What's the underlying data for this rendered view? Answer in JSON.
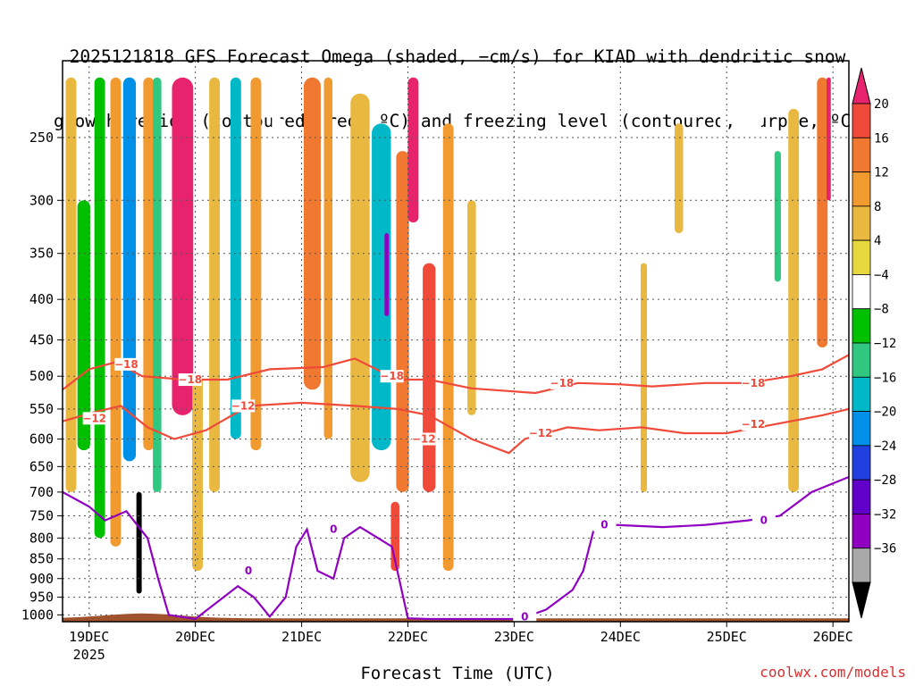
{
  "chart_data": {
    "type": "heatmap",
    "title_lines": [
      "2025121818 GFS Forecast Omega (shaded, −cm/s) for KIAD with dendritic snow",
      "growth region (contoured, red, ºC) and freezing level (contoured, purple, ºC)"
    ],
    "xlabel": "Forecast Time (UTC)",
    "credit": "coolwx.com/models",
    "x_ticks": [
      {
        "label": "19DEC",
        "sub": "2025",
        "day": 0
      },
      {
        "label": "20DEC",
        "day": 1
      },
      {
        "label": "21DEC",
        "day": 2
      },
      {
        "label": "22DEC",
        "day": 3
      },
      {
        "label": "23DEC",
        "day": 4
      },
      {
        "label": "24DEC",
        "day": 5
      },
      {
        "label": "25DEC",
        "day": 6
      },
      {
        "label": "26DEC",
        "day": 7
      }
    ],
    "xlim_days": [
      -0.25,
      7.15
    ],
    "y_levels": [
      250,
      300,
      350,
      400,
      450,
      500,
      550,
      600,
      650,
      700,
      750,
      800,
      850,
      900,
      950,
      1000
    ],
    "ylim_hpa": [
      200,
      1020
    ],
    "y_scale": "log",
    "grid": true,
    "colorbar": {
      "labels": [
        "20",
        "16",
        "12",
        "8",
        "4",
        "−4",
        "−8",
        "−12",
        "−16",
        "−20",
        "−24",
        "−28",
        "−32",
        "−36"
      ],
      "colors": [
        "#e8236e",
        "#f04a3a",
        "#f07830",
        "#f09a30",
        "#e8b840",
        "#e8d840",
        "#ffffff",
        "#00c000",
        "#30c880",
        "#00b8c8",
        "#0090e8",
        "#2040e0",
        "#6000c8",
        "#9000c0",
        "#a8a8a8",
        "#000000"
      ]
    },
    "omega_cells": [
      {
        "day": -0.17,
        "p0": 210,
        "p1": 700,
        "w": 0.1,
        "v": 6
      },
      {
        "day": -0.05,
        "p0": 300,
        "p1": 620,
        "w": 0.12,
        "v": -10
      },
      {
        "day": 0.1,
        "p0": 210,
        "p1": 800,
        "w": 0.1,
        "v": -12
      },
      {
        "day": 0.25,
        "p0": 210,
        "p1": 820,
        "w": 0.1,
        "v": 10
      },
      {
        "day": 0.38,
        "p0": 210,
        "p1": 640,
        "w": 0.12,
        "v": -24
      },
      {
        "day": 0.47,
        "p0": 700,
        "p1": 940,
        "w": 0.05,
        "v": -40
      },
      {
        "day": 0.56,
        "p0": 210,
        "p1": 620,
        "w": 0.1,
        "v": 8
      },
      {
        "day": 0.64,
        "p0": 210,
        "p1": 700,
        "w": 0.08,
        "v": -14
      },
      {
        "day": 0.88,
        "p0": 210,
        "p1": 560,
        "w": 0.2,
        "v": 20
      },
      {
        "day": 1.02,
        "p0": 500,
        "p1": 880,
        "w": 0.1,
        "v": 6
      },
      {
        "day": 1.18,
        "p0": 210,
        "p1": 700,
        "w": 0.1,
        "v": 6
      },
      {
        "day": 1.38,
        "p0": 210,
        "p1": 600,
        "w": 0.1,
        "v": -18
      },
      {
        "day": 1.57,
        "p0": 210,
        "p1": 620,
        "w": 0.1,
        "v": 10
      },
      {
        "day": 1.76,
        "p0": 210,
        "p1": 620,
        "w": 0.08,
        "v": -8
      },
      {
        "day": 2.1,
        "p0": 210,
        "p1": 520,
        "w": 0.16,
        "v": 12
      },
      {
        "day": 2.25,
        "p0": 210,
        "p1": 600,
        "w": 0.08,
        "v": 8
      },
      {
        "day": 2.55,
        "p0": 220,
        "p1": 680,
        "w": 0.18,
        "v": 6
      },
      {
        "day": 2.75,
        "p0": 240,
        "p1": 620,
        "w": 0.18,
        "v": -20
      },
      {
        "day": 2.8,
        "p0": 330,
        "p1": 420,
        "w": 0.04,
        "v": -34
      },
      {
        "day": 2.95,
        "p0": 260,
        "p1": 700,
        "w": 0.12,
        "v": 12
      },
      {
        "day": 2.88,
        "p0": 720,
        "p1": 880,
        "w": 0.08,
        "v": 18
      },
      {
        "day": 3.05,
        "p0": 210,
        "p1": 320,
        "w": 0.1,
        "v": 20
      },
      {
        "day": 3.2,
        "p0": 360,
        "p1": 700,
        "w": 0.12,
        "v": 16
      },
      {
        "day": 3.38,
        "p0": 240,
        "p1": 880,
        "w": 0.1,
        "v": 8
      },
      {
        "day": 3.6,
        "p0": 300,
        "p1": 560,
        "w": 0.08,
        "v": 6
      },
      {
        "day": 4.05,
        "p0": 500,
        "p1": 880,
        "w": 0.08,
        "v": -8
      },
      {
        "day": 4.28,
        "p0": 520,
        "p1": 880,
        "w": 0.06,
        "v": -8
      },
      {
        "day": 4.55,
        "p0": 300,
        "p1": 440,
        "w": 0.06,
        "v": -8
      },
      {
        "day": 4.92,
        "p0": 220,
        "p1": 620,
        "w": 0.1,
        "v": -8
      },
      {
        "day": 5.22,
        "p0": 360,
        "p1": 700,
        "w": 0.06,
        "v": 6
      },
      {
        "day": 5.55,
        "p0": 240,
        "p1": 330,
        "w": 0.08,
        "v": 5
      },
      {
        "day": 5.97,
        "p0": 210,
        "p1": 270,
        "w": 0.06,
        "v": -8
      },
      {
        "day": 6.25,
        "p0": 230,
        "p1": 500,
        "w": 0.15,
        "v": -8
      },
      {
        "day": 6.48,
        "p0": 260,
        "p1": 380,
        "w": 0.06,
        "v": -14
      },
      {
        "day": 6.63,
        "p0": 230,
        "p1": 700,
        "w": 0.1,
        "v": 6
      },
      {
        "day": 6.9,
        "p0": 210,
        "p1": 460,
        "w": 0.1,
        "v": 14
      },
      {
        "day": 6.96,
        "p0": 210,
        "p1": 300,
        "w": 0.04,
        "v": 20
      },
      {
        "day": 7.1,
        "p0": 700,
        "p1": 860,
        "w": 0.05,
        "v": -8
      }
    ],
    "contours": [
      {
        "value": -18,
        "label": "−18",
        "color": "#f04a3a",
        "points": [
          [
            -0.25,
            520
          ],
          [
            0.0,
            490
          ],
          [
            0.25,
            480
          ],
          [
            0.5,
            500
          ],
          [
            0.9,
            505
          ],
          [
            1.3,
            505
          ],
          [
            1.7,
            490
          ],
          [
            2.2,
            487
          ],
          [
            2.5,
            475
          ],
          [
            2.9,
            505
          ],
          [
            3.2,
            505
          ],
          [
            3.6,
            518
          ],
          [
            4.2,
            525
          ],
          [
            4.6,
            510
          ],
          [
            5.0,
            512
          ],
          [
            5.3,
            515
          ],
          [
            5.8,
            510
          ],
          [
            6.2,
            510
          ],
          [
            6.6,
            500
          ],
          [
            6.9,
            490
          ],
          [
            7.15,
            470
          ]
        ],
        "labels": [
          [
            0.35,
            483
          ],
          [
            0.95,
            505
          ],
          [
            2.85,
            500
          ],
          [
            4.45,
            510
          ],
          [
            6.25,
            510
          ]
        ]
      },
      {
        "value": -12,
        "label": "−12",
        "color": "#f04a3a",
        "points": [
          [
            -0.25,
            570
          ],
          [
            0.05,
            555
          ],
          [
            0.3,
            545
          ],
          [
            0.55,
            580
          ],
          [
            0.8,
            600
          ],
          [
            1.1,
            585
          ],
          [
            1.5,
            545
          ],
          [
            2.0,
            540
          ],
          [
            2.5,
            545
          ],
          [
            2.9,
            550
          ],
          [
            3.2,
            560
          ],
          [
            3.6,
            600
          ],
          [
            3.95,
            625
          ],
          [
            4.1,
            600
          ],
          [
            4.5,
            580
          ],
          [
            4.8,
            585
          ],
          [
            5.2,
            580
          ],
          [
            5.6,
            590
          ],
          [
            6.0,
            590
          ],
          [
            6.3,
            580
          ],
          [
            6.6,
            570
          ],
          [
            6.9,
            560
          ],
          [
            7.15,
            550
          ]
        ],
        "labels": [
          [
            0.05,
            565
          ],
          [
            1.45,
            545
          ],
          [
            3.15,
            600
          ],
          [
            4.25,
            590
          ],
          [
            6.25,
            575
          ]
        ]
      },
      {
        "value": 0,
        "label": "0",
        "color": "#9000c0",
        "points": [
          [
            -0.25,
            700
          ],
          [
            0.0,
            730
          ],
          [
            0.15,
            760
          ],
          [
            0.35,
            740
          ],
          [
            0.55,
            800
          ],
          [
            0.65,
            900
          ],
          [
            0.75,
            1000
          ],
          [
            1.0,
            1012
          ],
          [
            1.4,
            920
          ],
          [
            1.55,
            950
          ],
          [
            1.7,
            1005
          ],
          [
            1.85,
            950
          ],
          [
            1.95,
            820
          ],
          [
            2.05,
            780
          ],
          [
            2.15,
            880
          ],
          [
            2.3,
            900
          ],
          [
            2.4,
            800
          ],
          [
            2.55,
            775
          ],
          [
            2.85,
            820
          ],
          [
            3.0,
            1010
          ],
          [
            3.2,
            1012
          ],
          [
            4.05,
            1012
          ],
          [
            4.3,
            985
          ],
          [
            4.55,
            930
          ],
          [
            4.65,
            880
          ],
          [
            4.75,
            780
          ],
          [
            4.95,
            770
          ],
          [
            5.4,
            775
          ],
          [
            5.8,
            770
          ],
          [
            6.2,
            760
          ],
          [
            6.5,
            750
          ],
          [
            6.8,
            700
          ],
          [
            7.15,
            670
          ]
        ],
        "labels": [
          [
            2.3,
            780
          ],
          [
            1.5,
            880
          ],
          [
            4.85,
            770
          ],
          [
            6.35,
            760
          ],
          [
            4.1,
            1005
          ]
        ]
      }
    ]
  }
}
